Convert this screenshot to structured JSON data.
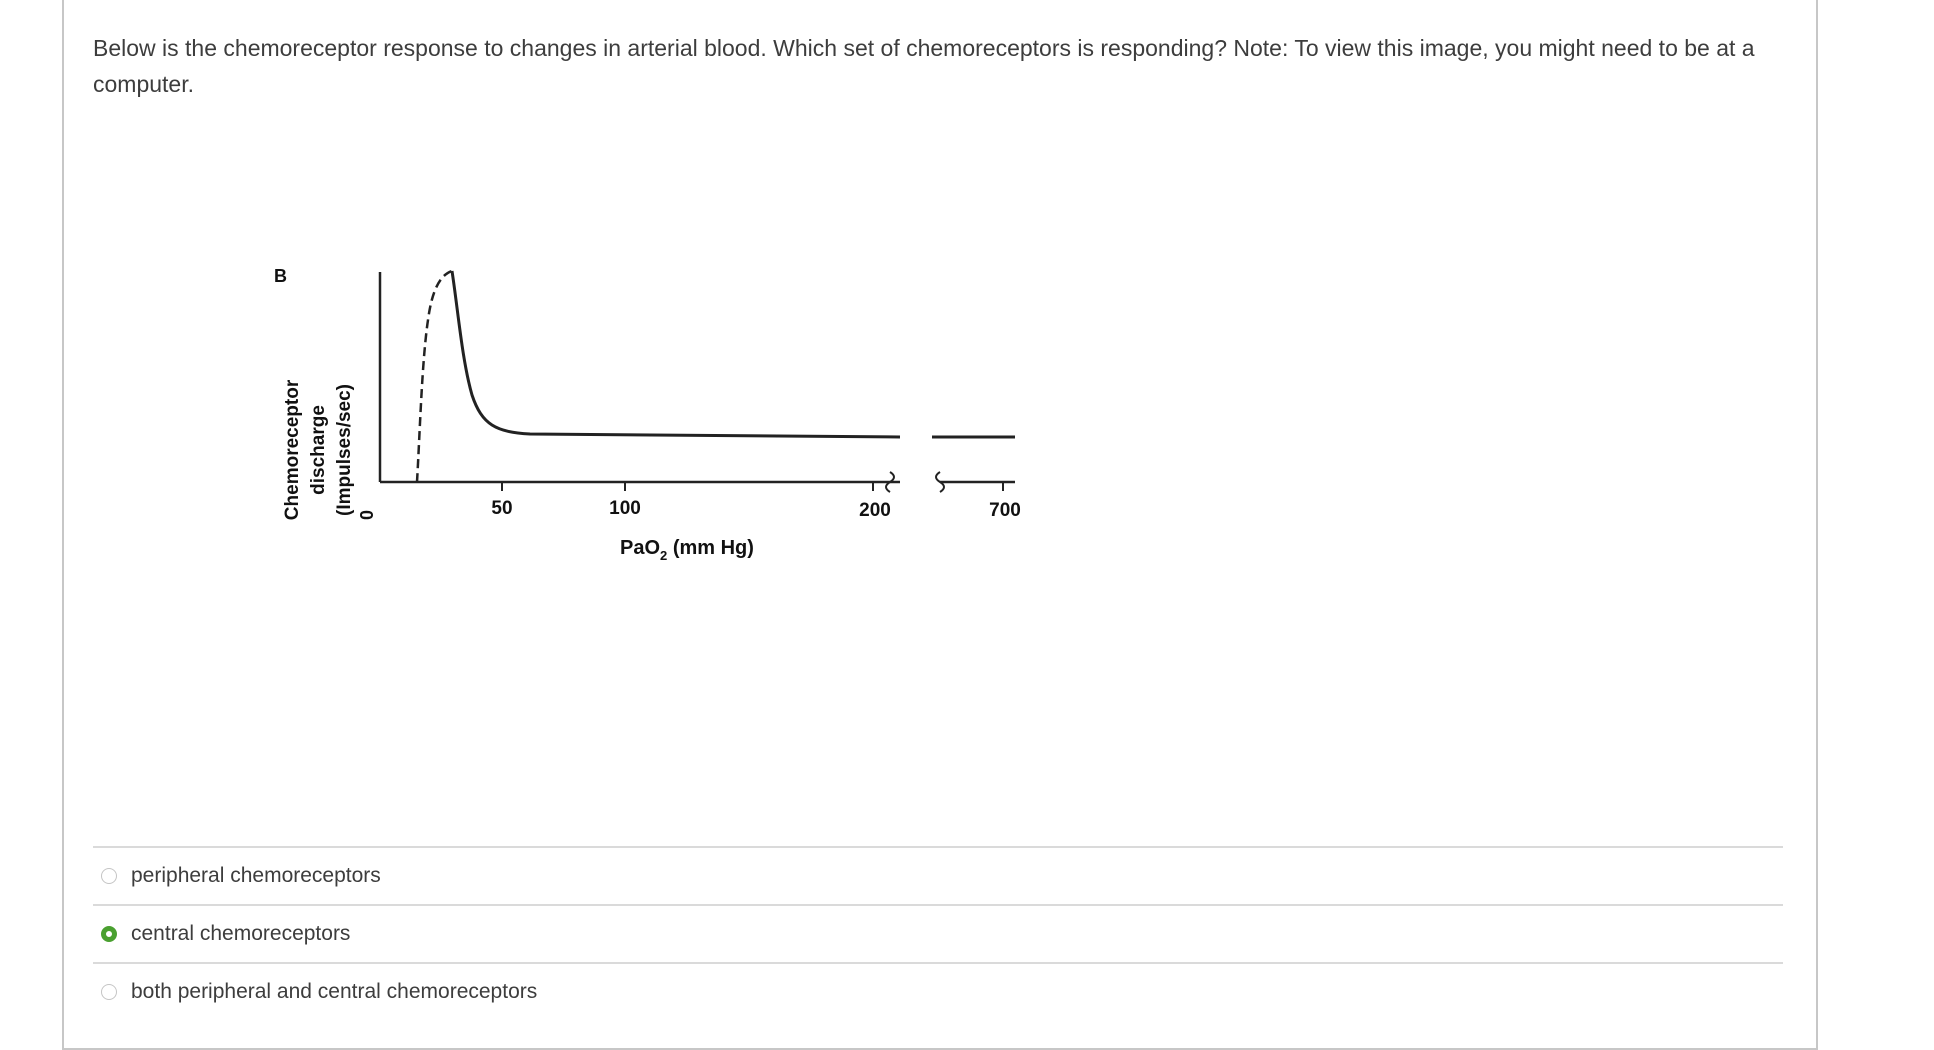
{
  "question": {
    "text": "Below is the chemoreceptor response to changes in arterial blood. Which set of chemoreceptors is responding? Note: To view this image, you might need to be at a computer."
  },
  "figure": {
    "panel_label": "B",
    "ylabel_lines": [
      "Chemoreceptor",
      "discharge",
      "(Impulses/sec)"
    ],
    "xlabel": "PaO",
    "xlabel_sub": "2",
    "xlabel_units": " (mm Hg)",
    "x_ticks": [
      "0",
      "50",
      "100",
      "200",
      "700"
    ]
  },
  "chart_data": {
    "type": "line",
    "title": "",
    "xlabel": "PaO2 (mm Hg)",
    "ylabel": "Chemoreceptor discharge (Impulses/sec)",
    "x_ticks": [
      0,
      50,
      100,
      200,
      700
    ],
    "axis_break": "between 200 and 700",
    "y_ticks": [],
    "series": [
      {
        "style": "dashed-rise-then-solid",
        "points": [
          [
            18,
            0
          ],
          [
            25,
            40
          ],
          [
            30,
            72
          ],
          [
            32,
            78
          ],
          [
            36,
            35
          ],
          [
            40,
            12
          ],
          [
            50,
            3
          ],
          [
            100,
            2
          ],
          [
            200,
            2
          ],
          [
            700,
            2
          ]
        ]
      }
    ],
    "grid": false
  },
  "answers": [
    {
      "label": "peripheral chemoreceptors",
      "selected": false
    },
    {
      "label": "central chemoreceptors",
      "selected": true
    },
    {
      "label": "both peripheral and central chemoreceptors",
      "selected": false
    }
  ],
  "colors": {
    "selected_radio": "#4aa030",
    "divider": "#dadada",
    "card_border": "#c7c7c7"
  }
}
